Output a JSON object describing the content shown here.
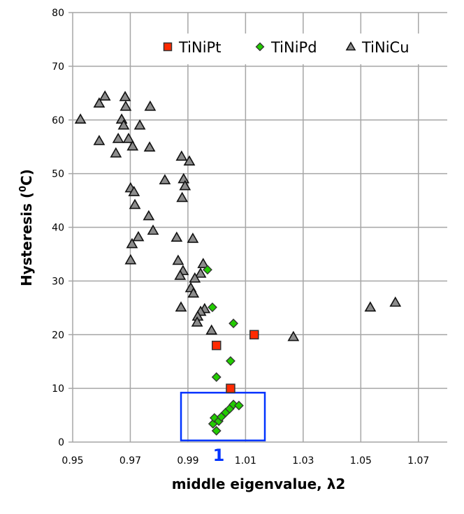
{
  "chart_data": {
    "type": "scatter",
    "title": "",
    "xlabel": "middle eigenvalue, λ2",
    "ylabel_main": "Hysteresis (",
    "ylabel_sup": "0",
    "ylabel_end": "C)",
    "xlim": [
      0.95,
      1.08
    ],
    "ylim": [
      0,
      80
    ],
    "xticks": [
      "0.95",
      "0.97",
      "0.99",
      "1.01",
      "1.03",
      "1.05",
      "1.07"
    ],
    "xtick_values": [
      0.95,
      0.97,
      0.99,
      1.01,
      1.03,
      1.05,
      1.07
    ],
    "yticks": [
      "0",
      "10",
      "20",
      "30",
      "40",
      "50",
      "60",
      "70",
      "80"
    ],
    "ytick_values": [
      0,
      10,
      20,
      30,
      40,
      50,
      60,
      70,
      80
    ],
    "grid": true,
    "legend_position": "top-right",
    "series": [
      {
        "name": "TiNiPt",
        "marker": "square",
        "color": "#ff2a00",
        "points": [
          [
            0.9999,
            18.0
          ],
          [
            1.013,
            20.0
          ],
          [
            1.0048,
            10.0
          ]
        ]
      },
      {
        "name": "TiNiPd",
        "marker": "diamond",
        "color": "#22cc00",
        "points": [
          [
            0.9968,
            32.1
          ],
          [
            0.9985,
            25.1
          ],
          [
            1.0058,
            22.1
          ],
          [
            1.0048,
            15.1
          ],
          [
            0.9999,
            12.1
          ],
          [
            0.9999,
            2.1
          ],
          [
            0.9987,
            3.4
          ],
          [
            0.9992,
            4.5
          ],
          [
            1.0007,
            3.9
          ],
          [
            1.0016,
            4.7
          ],
          [
            1.0031,
            5.5
          ],
          [
            1.0045,
            6.2
          ],
          [
            1.0058,
            7.0
          ],
          [
            1.0077,
            6.8
          ]
        ]
      },
      {
        "name": "TiNiCu",
        "marker": "triangle",
        "color": "#8c8c8c",
        "points": [
          [
            0.9612,
            64.4
          ],
          [
            0.9592,
            63.1
          ],
          [
            0.9682,
            64.3
          ],
          [
            0.9684,
            62.5
          ],
          [
            0.9769,
            62.5
          ],
          [
            0.9527,
            60.1
          ],
          [
            0.967,
            60.1
          ],
          [
            0.9677,
            59.0
          ],
          [
            0.9733,
            59.0
          ],
          [
            0.9592,
            56.1
          ],
          [
            0.9658,
            56.5
          ],
          [
            0.9694,
            56.5
          ],
          [
            0.9708,
            55.1
          ],
          [
            0.9767,
            54.9
          ],
          [
            0.965,
            53.8
          ],
          [
            0.9878,
            53.2
          ],
          [
            0.9905,
            52.3
          ],
          [
            0.982,
            48.8
          ],
          [
            0.9885,
            49.0
          ],
          [
            0.989,
            47.7
          ],
          [
            0.988,
            45.5
          ],
          [
            0.9701,
            47.3
          ],
          [
            0.9713,
            46.6
          ],
          [
            0.9716,
            44.2
          ],
          [
            0.9764,
            42.1
          ],
          [
            0.9779,
            39.4
          ],
          [
            0.9728,
            38.2
          ],
          [
            0.9706,
            36.9
          ],
          [
            0.9861,
            38.1
          ],
          [
            0.9917,
            37.9
          ],
          [
            0.9701,
            33.9
          ],
          [
            0.9866,
            33.8
          ],
          [
            0.9953,
            33.2
          ],
          [
            0.9883,
            31.9
          ],
          [
            0.9944,
            31.4
          ],
          [
            0.9873,
            31.0
          ],
          [
            0.9924,
            30.5
          ],
          [
            0.991,
            28.7
          ],
          [
            0.9919,
            27.7
          ],
          [
            0.9876,
            25.1
          ],
          [
            0.9958,
            24.8
          ],
          [
            0.9944,
            24.3
          ],
          [
            0.9934,
            23.4
          ],
          [
            0.9932,
            22.3
          ],
          [
            0.9982,
            20.8
          ],
          [
            1.0266,
            19.6
          ],
          [
            1.0533,
            25.1
          ],
          [
            1.062,
            26.0
          ]
        ]
      }
    ],
    "annotations": [
      {
        "type": "rectangle",
        "x": [
          0.9876,
          1.0167
        ],
        "y": [
          0.3,
          9.2
        ],
        "color": "#0033ff",
        "label": "1"
      }
    ]
  }
}
